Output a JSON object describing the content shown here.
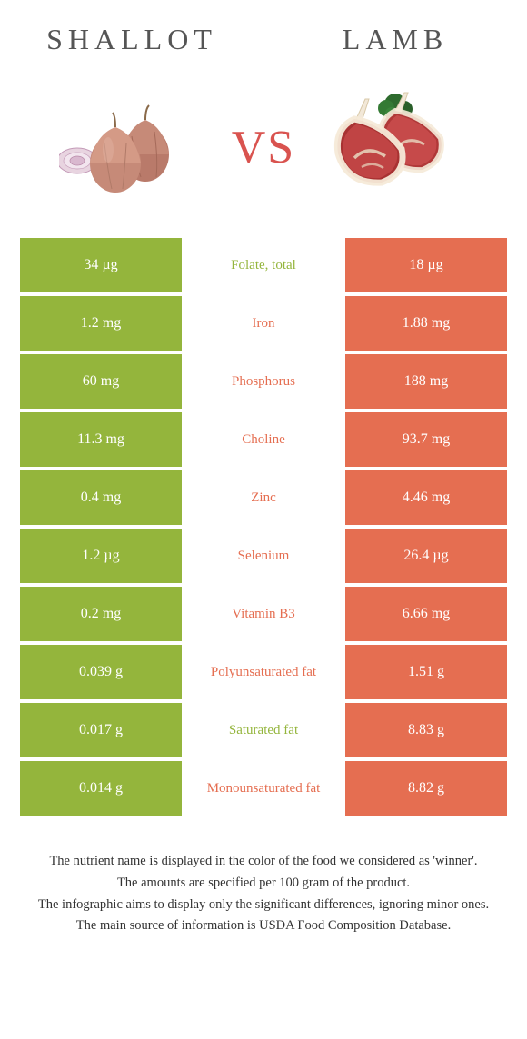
{
  "colors": {
    "left": "#94b53c",
    "right": "#e56e51",
    "vs": "#d9534f"
  },
  "header": {
    "left_title": "Shallot",
    "right_title": "Lamb",
    "vs": "VS"
  },
  "rows": [
    {
      "left": "34 µg",
      "label": "Folate, total",
      "right": "18 µg",
      "winner": "left"
    },
    {
      "left": "1.2 mg",
      "label": "Iron",
      "right": "1.88 mg",
      "winner": "right"
    },
    {
      "left": "60 mg",
      "label": "Phosphorus",
      "right": "188 mg",
      "winner": "right"
    },
    {
      "left": "11.3 mg",
      "label": "Choline",
      "right": "93.7 mg",
      "winner": "right"
    },
    {
      "left": "0.4 mg",
      "label": "Zinc",
      "right": "4.46 mg",
      "winner": "right"
    },
    {
      "left": "1.2 µg",
      "label": "Selenium",
      "right": "26.4 µg",
      "winner": "right"
    },
    {
      "left": "0.2 mg",
      "label": "Vitamin B3",
      "right": "6.66 mg",
      "winner": "right"
    },
    {
      "left": "0.039 g",
      "label": "Polyunsaturated fat",
      "right": "1.51 g",
      "winner": "right"
    },
    {
      "left": "0.017 g",
      "label": "Saturated fat",
      "right": "8.83 g",
      "winner": "left"
    },
    {
      "left": "0.014 g",
      "label": "Monounsaturated fat",
      "right": "8.82 g",
      "winner": "right"
    }
  ],
  "footer": {
    "line1": "The nutrient name is displayed in the color of the food we considered as 'winner'.",
    "line2": "The amounts are specified per 100 gram of the product.",
    "line3": "The infographic aims to display only the significant differences, ignoring minor ones.",
    "line4": "The main source of information is USDA Food Composition Database."
  }
}
